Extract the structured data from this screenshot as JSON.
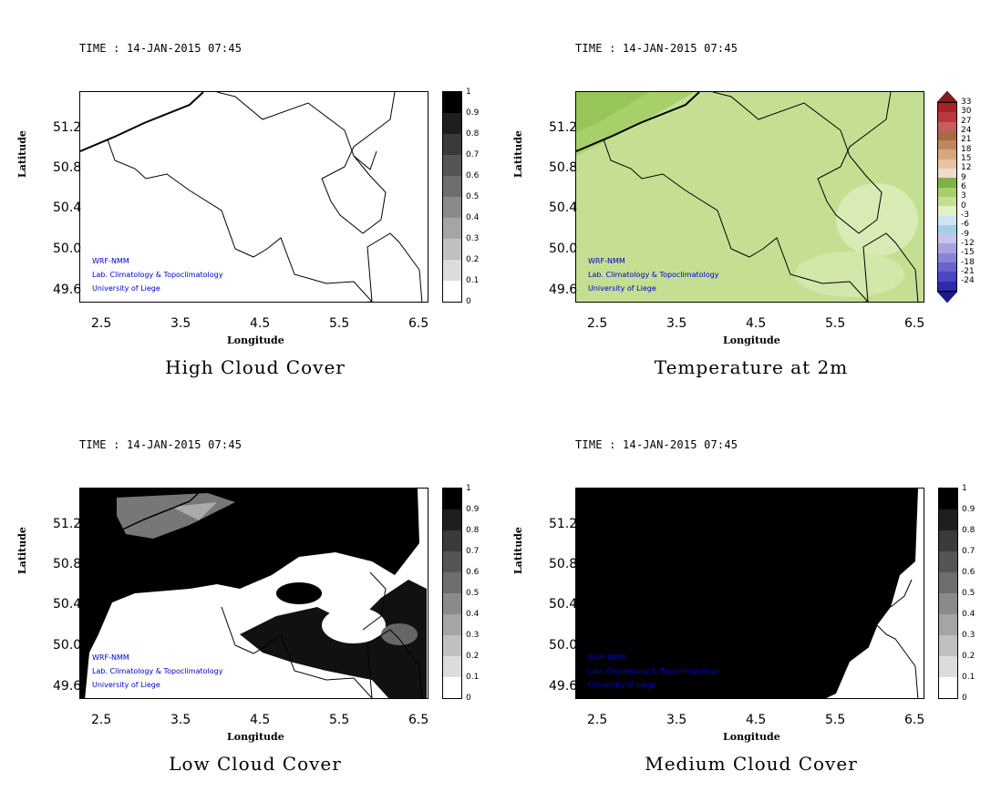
{
  "panels": [
    {
      "time": "TIME : 14-JAN-2015 07:45",
      "title": "High Cloud Cover",
      "ylabel": "Latitude",
      "xlabel": "Longitude"
    },
    {
      "time": "TIME : 14-JAN-2015 07:45",
      "title": "Temperature at 2m",
      "ylabel": "Latitude",
      "xlabel": "Longitude"
    },
    {
      "time": "TIME : 14-JAN-2015 07:45",
      "title": "Low Cloud Cover",
      "ylabel": "Latitude",
      "xlabel": "Longitude"
    },
    {
      "time": "TIME : 14-JAN-2015 07:45",
      "title": "Medium Cloud Cover",
      "ylabel": "Latitude",
      "xlabel": "Longitude"
    }
  ],
  "yticks": [
    "51.2",
    "50.8",
    "50.4",
    "50.0",
    "49.6"
  ],
  "xticks": [
    "2.5",
    "3.5",
    "4.5",
    "5.5",
    "6.5"
  ],
  "credits": [
    "WRF-NMM",
    "Lab. Climatology & Topoclimatology",
    "University of Liege"
  ],
  "cloud_levels": [
    "1",
    "0.9",
    "0.8",
    "0.7",
    "0.6",
    "0.5",
    "0.4",
    "0.3",
    "0.2",
    "0.1",
    "0"
  ],
  "temp_levels": [
    "33",
    "30",
    "27",
    "24",
    "21",
    "18",
    "15",
    "12",
    "9",
    "6",
    "3",
    "0",
    "-3",
    "-6",
    "-9",
    "-12",
    "-15",
    "-18",
    "-21",
    "-24"
  ],
  "colors": {
    "credit": "#0000cc",
    "temp_field": "#c9e39a",
    "temp_dark": "#a7cf6a",
    "cloud_black": "#000000"
  }
}
